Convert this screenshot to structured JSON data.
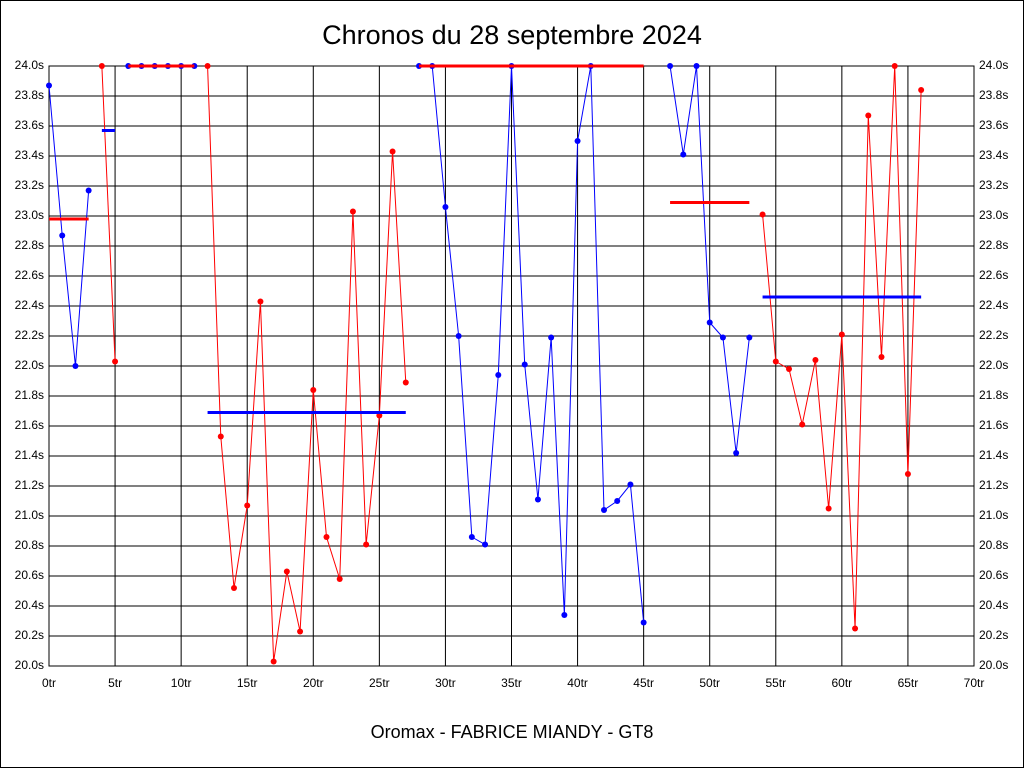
{
  "chart_data": {
    "type": "line",
    "title": "Chronos du 28 septembre 2024",
    "footer": "Oromax - FABRICE MIANDY - GT8",
    "xlim": [
      0,
      70
    ],
    "xticks": [
      {
        "value": 0,
        "label": "0tr"
      },
      {
        "value": 5,
        "label": "5tr"
      },
      {
        "value": 10,
        "label": "10tr"
      },
      {
        "value": 15,
        "label": "15tr"
      },
      {
        "value": 20,
        "label": "20tr"
      },
      {
        "value": 25,
        "label": "25tr"
      },
      {
        "value": 30,
        "label": "30tr"
      },
      {
        "value": 35,
        "label": "35tr"
      },
      {
        "value": 40,
        "label": "40tr"
      },
      {
        "value": 45,
        "label": "45tr"
      },
      {
        "value": 50,
        "label": "50tr"
      },
      {
        "value": 55,
        "label": "55tr"
      },
      {
        "value": 60,
        "label": "60tr"
      },
      {
        "value": 65,
        "label": "65tr"
      },
      {
        "value": 70,
        "label": "70tr"
      }
    ],
    "ylim": [
      20.0,
      24.0
    ],
    "yticks": [
      {
        "value": 20.0,
        "label": "20.0s"
      },
      {
        "value": 20.2,
        "label": "20.2s"
      },
      {
        "value": 20.4,
        "label": "20.4s"
      },
      {
        "value": 20.6,
        "label": "20.6s"
      },
      {
        "value": 20.8,
        "label": "20.8s"
      },
      {
        "value": 21.0,
        "label": "21.0s"
      },
      {
        "value": 21.2,
        "label": "21.2s"
      },
      {
        "value": 21.4,
        "label": "21.4s"
      },
      {
        "value": 21.6,
        "label": "21.6s"
      },
      {
        "value": 21.8,
        "label": "21.8s"
      },
      {
        "value": 22.0,
        "label": "22.0s"
      },
      {
        "value": 22.2,
        "label": "22.2s"
      },
      {
        "value": 22.4,
        "label": "22.4s"
      },
      {
        "value": 22.6,
        "label": "22.6s"
      },
      {
        "value": 22.8,
        "label": "22.8s"
      },
      {
        "value": 23.0,
        "label": "23.0s"
      },
      {
        "value": 23.2,
        "label": "23.2s"
      },
      {
        "value": 23.4,
        "label": "23.4s"
      },
      {
        "value": 23.6,
        "label": "23.6s"
      },
      {
        "value": 23.8,
        "label": "23.8s"
      },
      {
        "value": 24.0,
        "label": "24.0s"
      }
    ],
    "grid": true,
    "stints": [
      {
        "color": "#0000ff",
        "mean_color": "#ff0000",
        "laps": [
          0,
          1,
          2,
          3
        ],
        "values": [
          23.87,
          22.87,
          22.0,
          23.17
        ],
        "mean": 22.98
      },
      {
        "color": "#ff0000",
        "mean_color": "#0000ff",
        "laps": [
          4,
          5
        ],
        "values": [
          24.0,
          22.03
        ],
        "mean": 23.57
      },
      {
        "color": "#0000ff",
        "mean_color": "#ff0000",
        "laps": [
          6,
          7,
          8,
          9,
          10,
          11
        ],
        "values": [
          24.0,
          24.0,
          24.0,
          24.0,
          24.0,
          24.0
        ],
        "mean": 24.0
      },
      {
        "color": "#ff0000",
        "mean_color": "#0000ff",
        "laps": [
          12,
          13,
          14,
          15,
          16,
          17,
          18,
          19,
          20,
          21,
          22,
          23,
          24,
          25,
          26,
          27
        ],
        "values": [
          24.0,
          21.53,
          20.52,
          21.07,
          22.43,
          20.03,
          20.63,
          20.23,
          21.84,
          20.86,
          20.58,
          23.03,
          20.81,
          21.67,
          23.43,
          21.89
        ],
        "mean": 21.69
      },
      {
        "color": "#0000ff",
        "mean_color": "#ff0000",
        "laps": [
          28,
          29,
          30,
          31,
          32,
          33,
          34,
          35,
          36,
          37,
          38,
          39,
          40,
          41,
          42,
          43,
          44,
          45
        ],
        "values": [
          24.0,
          24.0,
          23.06,
          22.2,
          20.86,
          20.81,
          21.94,
          24.0,
          22.01,
          21.11,
          22.19,
          20.34,
          23.5,
          24.0,
          21.04,
          21.1,
          21.21,
          20.29
        ],
        "mean": 24.0
      },
      {
        "color": "#0000ff",
        "mean_color": "#ff0000",
        "laps": [
          47,
          48,
          49,
          50,
          51,
          52,
          53
        ],
        "values": [
          24.0,
          23.41,
          24.0,
          22.29,
          22.19,
          21.42,
          22.19
        ],
        "mean": 23.09
      },
      {
        "color": "#ff0000",
        "mean_color": "#0000ff",
        "laps": [
          54,
          55,
          56,
          57,
          58,
          59,
          60,
          61,
          62,
          63,
          64,
          65,
          66
        ],
        "values": [
          23.01,
          22.03,
          21.98,
          21.61,
          22.04,
          21.05,
          22.21,
          20.25,
          23.67,
          22.06,
          24.0,
          21.28,
          23.84
        ],
        "mean": 22.46
      }
    ]
  }
}
